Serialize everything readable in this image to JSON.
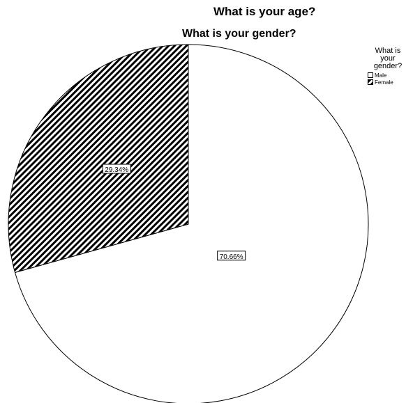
{
  "header": {
    "title": "What is your age?",
    "subtitle": "What is your gender?"
  },
  "legend": {
    "title": "What is your gender?",
    "title_lines": [
      "What is",
      "your",
      "gender?"
    ],
    "items": [
      {
        "label": "Male",
        "pattern": "none"
      },
      {
        "label": "Female",
        "pattern": "diagonal-hatch"
      }
    ]
  },
  "chart_data": {
    "type": "pie",
    "title": "What is your age?",
    "subtitle": "What is your gender?",
    "legend_title": "What is your gender?",
    "legend_position": "top-right",
    "slices": [
      {
        "label": "Male",
        "value": 70.66,
        "display": "70.66%",
        "fill": "#ffffff",
        "pattern": "none"
      },
      {
        "label": "Female",
        "value": 29.34,
        "display": "29.34%",
        "fill": "#ffffff",
        "pattern": "diagonal-hatch"
      }
    ],
    "start_angle_deg": 0,
    "direction": "clockwise"
  },
  "colors": {
    "background": "#ffffff",
    "stroke": "#000000",
    "hatch": "#000000"
  }
}
